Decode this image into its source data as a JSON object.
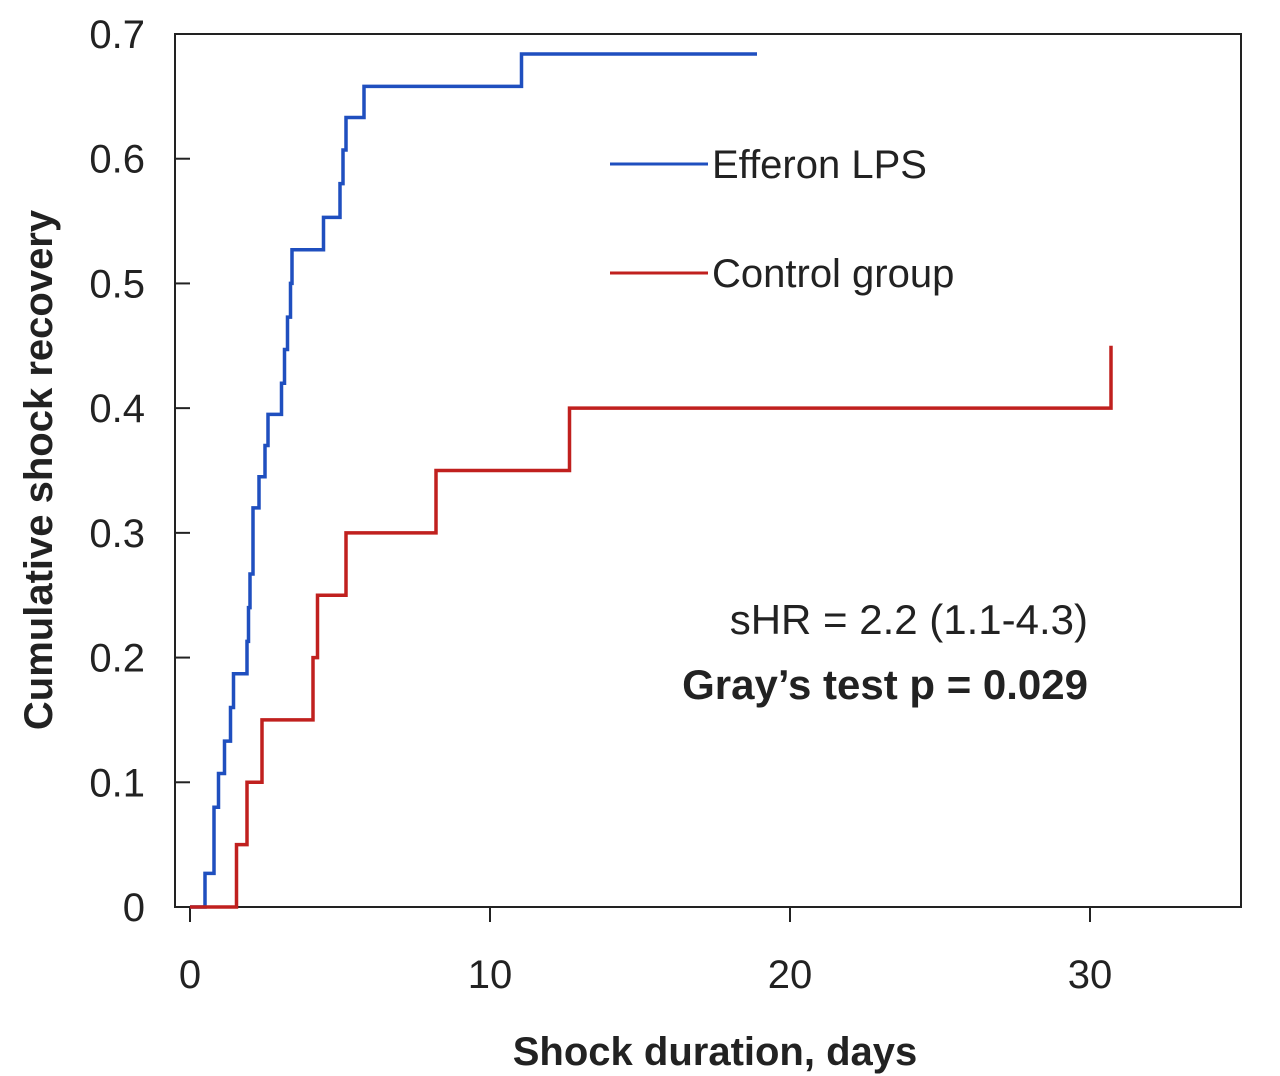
{
  "chart_data": {
    "type": "line",
    "step": true,
    "xlabel": "Shock duration, days",
    "ylabel": "Cumulative shock recovery",
    "xlim": [
      0,
      35
    ],
    "ylim": [
      0,
      0.7
    ],
    "xticks": [
      0,
      10,
      20,
      30
    ],
    "yticks": [
      0,
      0.1,
      0.2,
      0.3,
      0.4,
      0.5,
      0.6,
      0.7
    ],
    "xtick_labels": [
      "0",
      "10",
      "20",
      "30"
    ],
    "ytick_labels": [
      "0",
      "0.1",
      "0.2",
      "0.3",
      "0.4",
      "0.5",
      "0.6",
      "0.7"
    ],
    "grid": false,
    "legend_position": "top-right",
    "series": [
      {
        "name": "Efferon LPS",
        "color": "#1f4fbf",
        "points": [
          [
            0,
            0
          ],
          [
            0.5,
            0.027
          ],
          [
            0.8,
            0.08
          ],
          [
            0.95,
            0.107
          ],
          [
            1.15,
            0.133
          ],
          [
            1.35,
            0.16
          ],
          [
            1.45,
            0.187
          ],
          [
            1.9,
            0.213
          ],
          [
            1.95,
            0.24
          ],
          [
            2.0,
            0.267
          ],
          [
            2.1,
            0.32
          ],
          [
            2.3,
            0.345
          ],
          [
            2.5,
            0.37
          ],
          [
            2.6,
            0.395
          ],
          [
            3.05,
            0.42
          ],
          [
            3.15,
            0.447
          ],
          [
            3.25,
            0.473
          ],
          [
            3.35,
            0.5
          ],
          [
            3.4,
            0.527
          ],
          [
            4.45,
            0.553
          ],
          [
            5.0,
            0.58
          ],
          [
            5.1,
            0.607
          ],
          [
            5.2,
            0.633
          ],
          [
            5.8,
            0.658
          ],
          [
            11.05,
            0.684
          ],
          [
            18.9,
            0.684
          ]
        ]
      },
      {
        "name": "Control group",
        "color": "#c0201e",
        "points": [
          [
            0,
            0
          ],
          [
            1.55,
            0.05
          ],
          [
            1.9,
            0.1
          ],
          [
            2.4,
            0.15
          ],
          [
            4.1,
            0.2
          ],
          [
            4.25,
            0.25
          ],
          [
            5.2,
            0.3
          ],
          [
            8.2,
            0.35
          ],
          [
            12.65,
            0.4
          ],
          [
            30.7,
            0.45
          ]
        ]
      }
    ],
    "annotations": [
      "sHR = 2.2 (1.1-4.3)",
      "Gray’s test p = 0.029"
    ]
  }
}
